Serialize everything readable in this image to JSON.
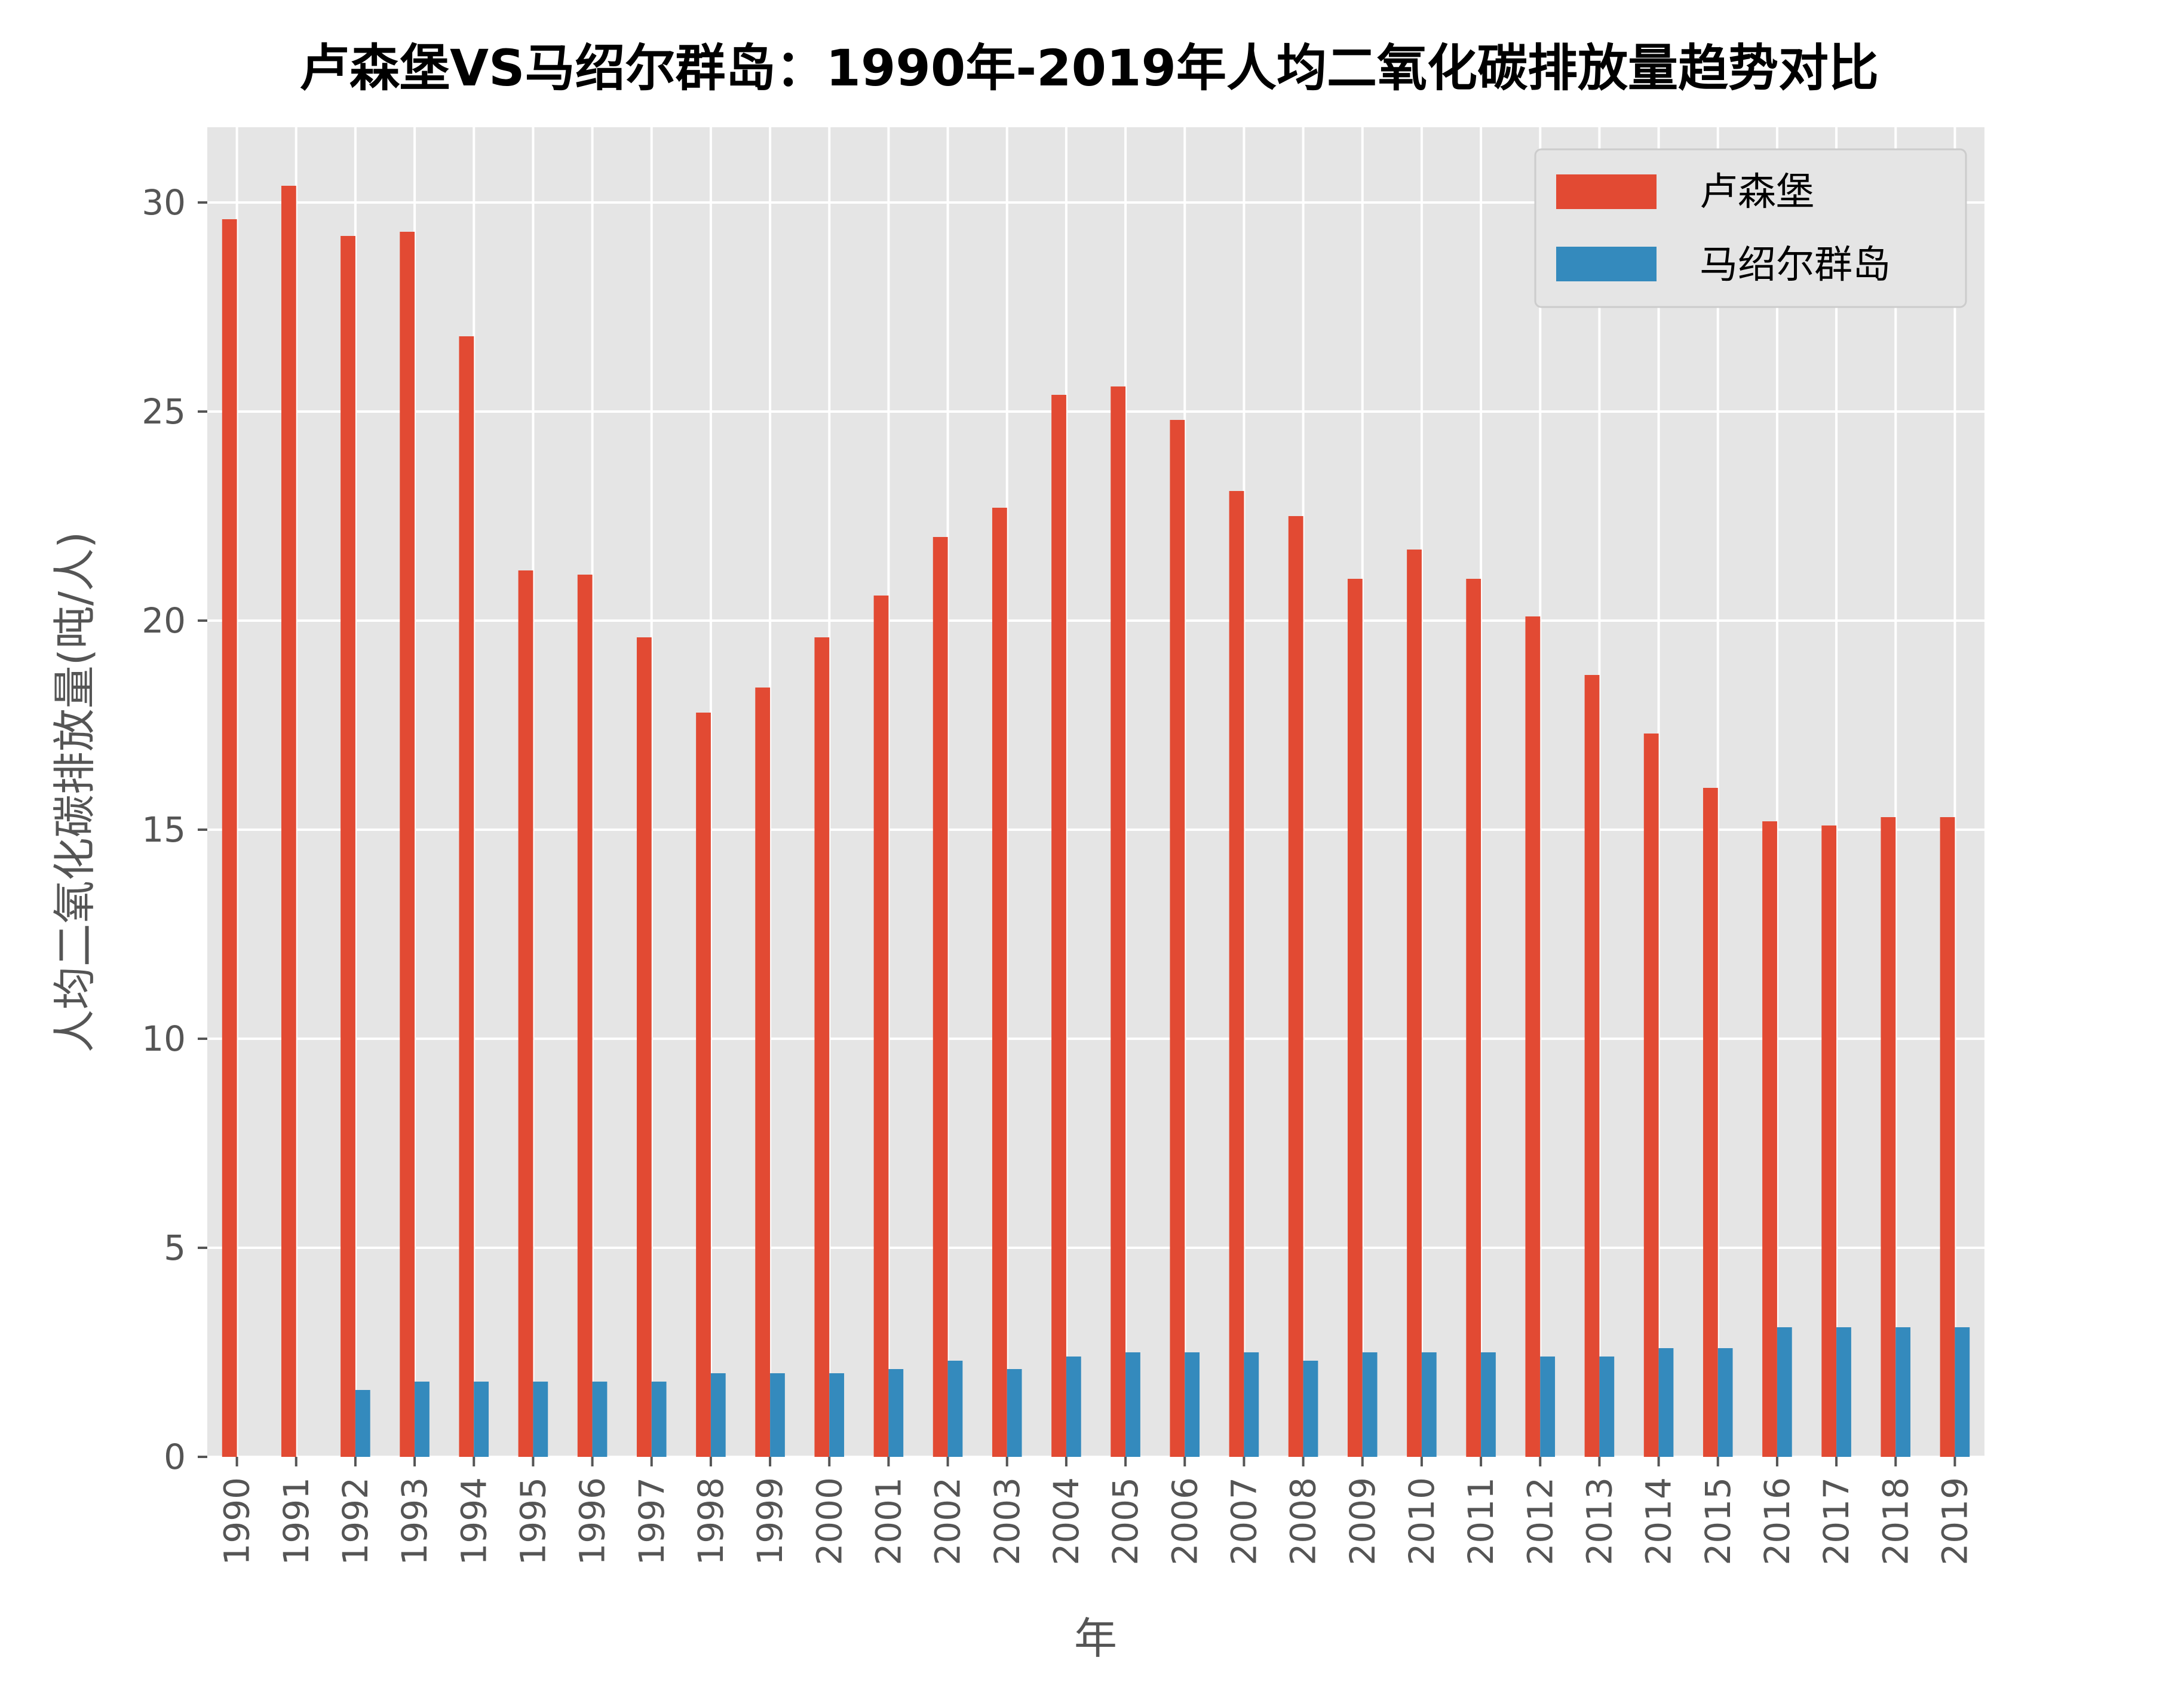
{
  "chart_data": {
    "type": "bar",
    "title": "卢森堡VS马绍尔群岛：1990年-2019年人均二氧化碳排放量趋势对比",
    "xlabel": "年",
    "ylabel": "人均二氧化碳排放量(吨/人)",
    "ylim": [
      0,
      31.8
    ],
    "yticks": [
      "0",
      "5",
      "10",
      "15",
      "20",
      "25",
      "30"
    ],
    "grid": true,
    "legend_position": "top-right",
    "categories": [
      "1990",
      "1991",
      "1992",
      "1993",
      "1994",
      "1995",
      "1996",
      "1997",
      "1998",
      "1999",
      "2000",
      "2001",
      "2002",
      "2003",
      "2004",
      "2005",
      "2006",
      "2007",
      "2008",
      "2009",
      "2010",
      "2011",
      "2012",
      "2013",
      "2014",
      "2015",
      "2016",
      "2017",
      "2018",
      "2019"
    ],
    "series": [
      {
        "name": "卢森堡",
        "color": "#E24A33",
        "values": [
          29.6,
          30.4,
          29.2,
          29.3,
          26.8,
          21.2,
          21.1,
          19.6,
          17.8,
          18.4,
          19.6,
          20.6,
          22.0,
          22.7,
          25.4,
          25.6,
          24.8,
          23.1,
          22.5,
          21.0,
          21.7,
          21.0,
          20.1,
          18.7,
          17.3,
          16.0,
          15.2,
          15.1,
          15.3,
          15.3
        ]
      },
      {
        "name": "马绍尔群岛",
        "color": "#348ABD",
        "values": [
          null,
          null,
          1.6,
          1.8,
          1.8,
          1.8,
          1.8,
          1.8,
          2.0,
          2.0,
          2.0,
          2.1,
          2.3,
          2.1,
          2.4,
          2.5,
          2.5,
          2.5,
          2.3,
          2.5,
          2.5,
          2.5,
          2.4,
          2.4,
          2.6,
          2.6,
          3.1,
          3.1,
          3.1,
          3.1
        ]
      }
    ]
  }
}
